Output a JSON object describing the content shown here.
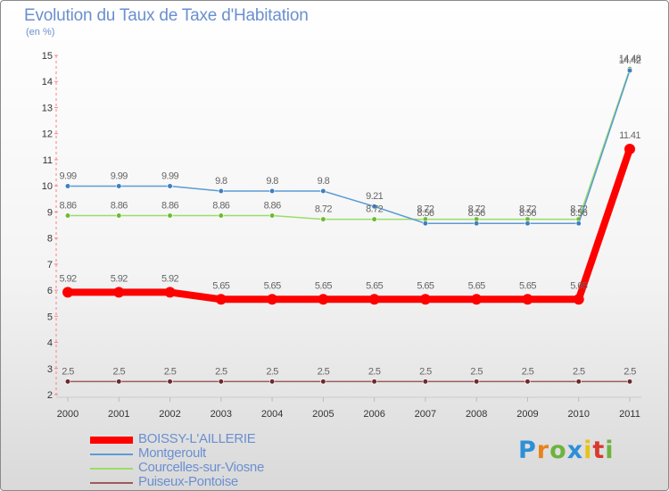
{
  "header": {
    "title": "Evolution du Taux de Taxe d'Habitation",
    "unit": "(en %)"
  },
  "logo": {
    "text": "Proxiti",
    "letters": [
      "P",
      "r",
      "o",
      "x",
      "i",
      "t",
      "i"
    ],
    "colors": [
      "#2e8fd8",
      "#e8821a",
      "#6db33f",
      "#2e8fd8",
      "#e8c21a",
      "#d83a2e",
      "#6db33f"
    ]
  },
  "chart_data": {
    "type": "line",
    "title": "Evolution du Taux de Taxe d'Habitation",
    "ylabel": "(en %)",
    "xlabel": "",
    "ylim": [
      2,
      15
    ],
    "yticks": [
      "2",
      "3",
      "4",
      "5",
      "6",
      "7",
      "8",
      "9",
      "10",
      "11",
      "12",
      "13",
      "14",
      "15"
    ],
    "categories": [
      "2000",
      "2001",
      "2002",
      "2003",
      "2004",
      "2005",
      "2006",
      "2007",
      "2008",
      "2009",
      "2010",
      "2011"
    ],
    "grid": false,
    "legend_position": "bottom-left",
    "series": [
      {
        "name": "BOISSY-L'AILLERIE",
        "color": "#ff0000",
        "emphasis": true,
        "values": [
          5.92,
          5.92,
          5.92,
          5.65,
          5.65,
          5.65,
          5.65,
          5.65,
          5.65,
          5.65,
          5.65,
          11.41
        ],
        "labels": [
          "5.92",
          "5.92",
          "5.92",
          "5.65",
          "5.65",
          "5.65",
          "5.65",
          "5.65",
          "5.65",
          "5.65",
          "5.65",
          "11.41"
        ]
      },
      {
        "name": "Montgeroult",
        "color": "#5b9bd5",
        "marker": "#3f7fc0",
        "values": [
          9.99,
          9.99,
          9.99,
          9.8,
          9.8,
          9.8,
          9.21,
          8.56,
          8.56,
          8.56,
          8.56,
          14.42
        ],
        "labels": [
          "9.99",
          "9.99",
          "9.99",
          "9.8",
          "9.8",
          "9.8",
          "9.21",
          "8.56",
          "8.56",
          "8.56",
          "8.56",
          "14.42"
        ]
      },
      {
        "name": "Courcelles-sur-Viosne",
        "color": "#99dd66",
        "marker": "#6dbb33",
        "values": [
          8.86,
          8.86,
          8.86,
          8.86,
          8.86,
          8.72,
          8.72,
          8.72,
          8.72,
          8.72,
          8.72,
          14.48
        ],
        "labels": [
          "8.86",
          "8.86",
          "8.86",
          "8.86",
          "8.86",
          "8.72",
          "8.72",
          "8.72",
          "8.72",
          "8.72",
          "8.72",
          "14.48"
        ]
      },
      {
        "name": "Puiseux-Pontoise",
        "color": "#9e5b5b",
        "marker": "#6b2a2a",
        "values": [
          2.5,
          2.5,
          2.5,
          2.5,
          2.5,
          2.5,
          2.5,
          2.5,
          2.5,
          2.5,
          2.5,
          2.5
        ],
        "labels": [
          "2.5",
          "2.5",
          "2.5",
          "2.5",
          "2.5",
          "2.5",
          "2.5",
          "2.5",
          "2.5",
          "2.5",
          "2.5",
          "2.5"
        ]
      }
    ]
  }
}
